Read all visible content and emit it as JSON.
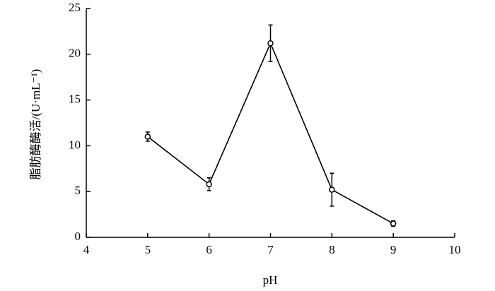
{
  "chart_data": {
    "type": "line",
    "xlabel": "pH",
    "ylabel": "脂肪酶酶活/(U·mL⁻¹)",
    "x": [
      5,
      6,
      7,
      8,
      9
    ],
    "series": [
      {
        "color": "#000000",
        "values": [
          11.0,
          5.8,
          21.2,
          5.2,
          1.5
        ],
        "errors": [
          0.5,
          0.7,
          2.0,
          1.8,
          0.3
        ]
      }
    ],
    "xlim": [
      4,
      10
    ],
    "xticks": [
      4,
      5,
      6,
      7,
      8,
      9,
      10
    ],
    "ylim": [
      0,
      25
    ],
    "yticks": [
      0,
      5,
      10,
      15,
      20,
      25
    ],
    "grid": false
  }
}
